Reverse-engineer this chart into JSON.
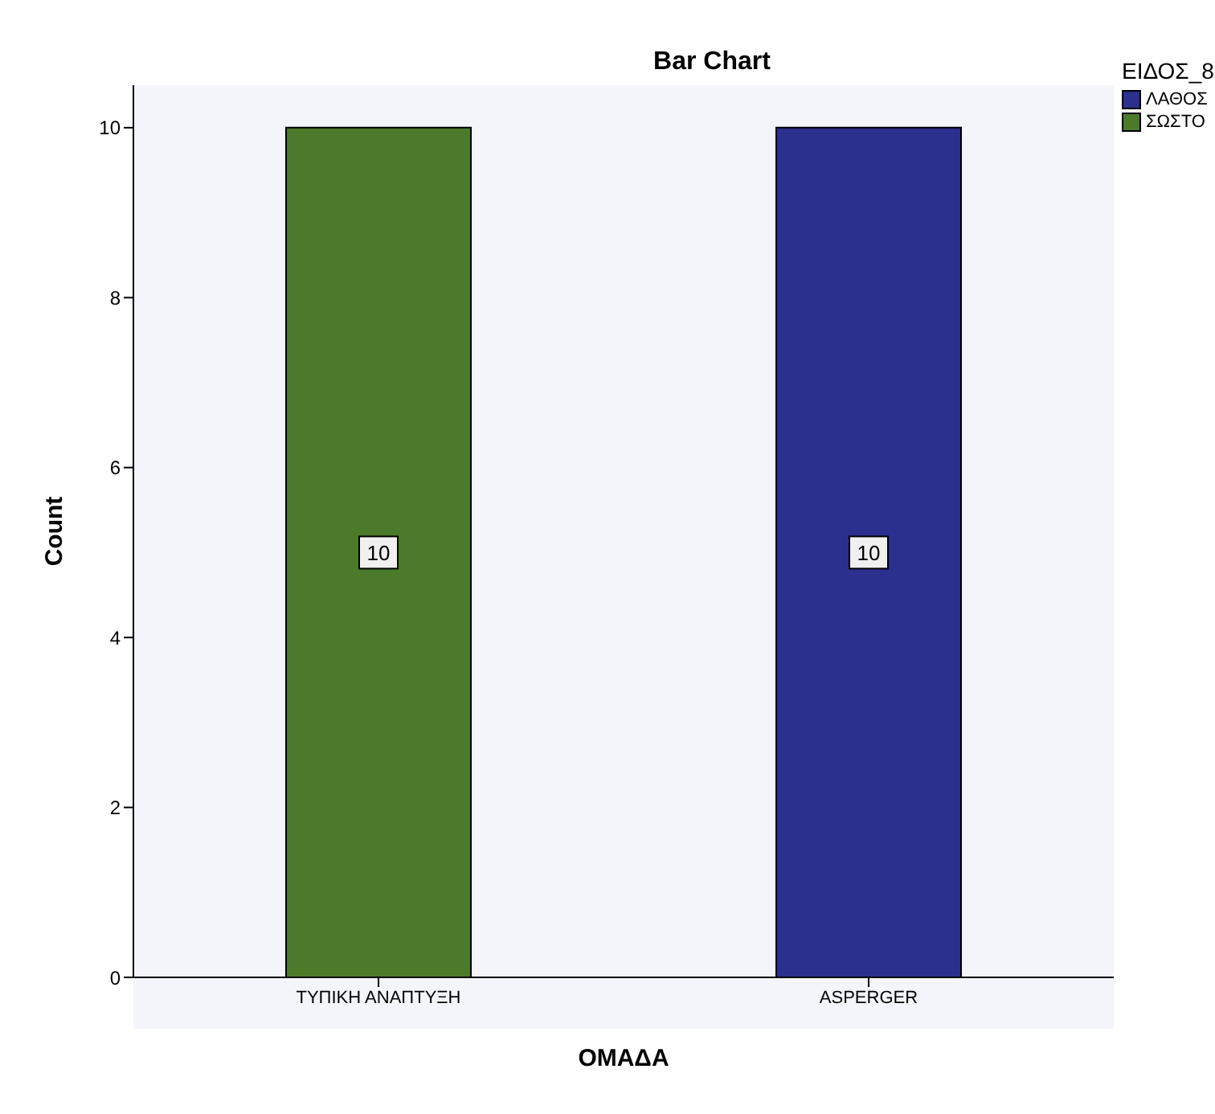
{
  "chart_data": {
    "type": "bar",
    "title": "Bar Chart",
    "xlabel": "ΟΜΑΔΑ",
    "ylabel": "Count",
    "legend_title": "ΕΙΔΟΣ_8",
    "categories": [
      "ΤΥΠΙΚΗ ΑΝΑΠΤΥΞΗ",
      "ASPERGER"
    ],
    "series": [
      {
        "name": "ΛΑΘΟΣ",
        "color": "#2b2f8e",
        "values": [
          null,
          10
        ]
      },
      {
        "name": "ΣΩΣΤΟ",
        "color": "#4a7a2a",
        "values": [
          10,
          null
        ]
      }
    ],
    "stacked": true,
    "data_labels": true,
    "ylim": [
      0,
      10.5
    ],
    "yticks": [
      0,
      2,
      4,
      6,
      8,
      10
    ],
    "grid": false,
    "legend": "top right"
  }
}
